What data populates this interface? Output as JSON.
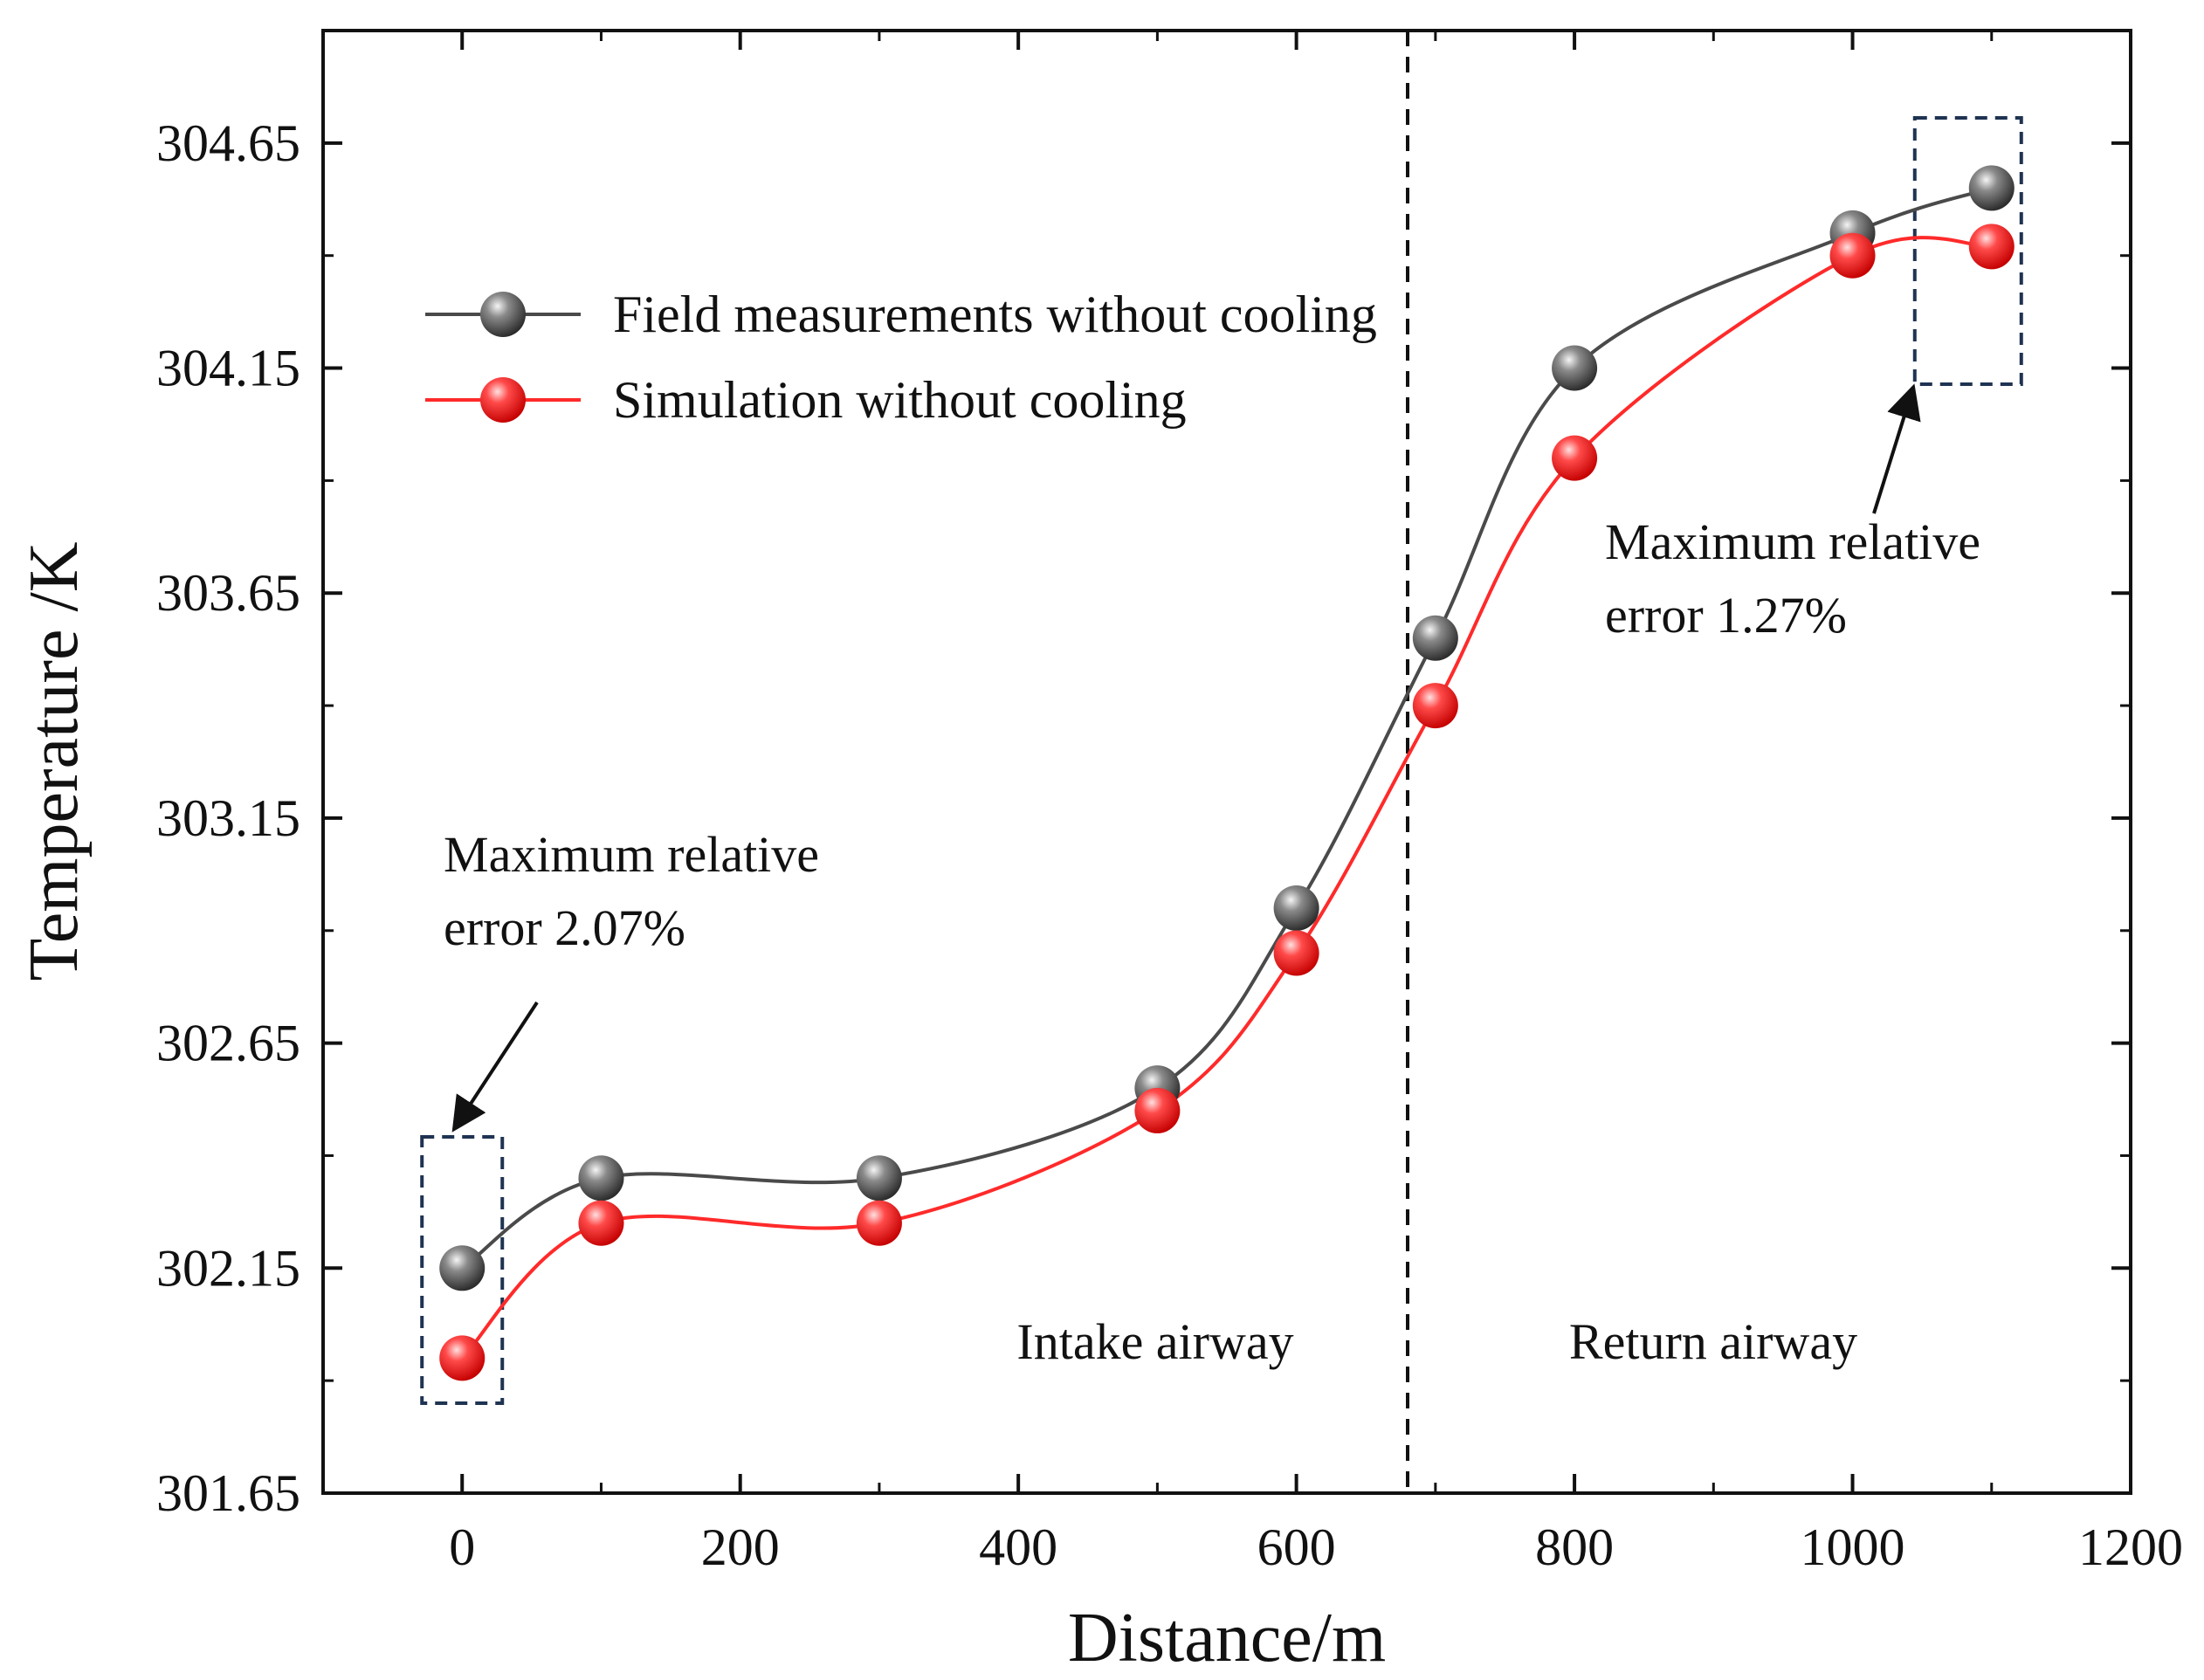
{
  "chart_data": {
    "type": "line",
    "title": "",
    "xlabel": "Distance/m",
    "ylabel": "Temperature /K",
    "xlim": [
      -100,
      1200
    ],
    "ylim": [
      301.65,
      304.9
    ],
    "x_ticks": [
      0,
      200,
      400,
      600,
      800,
      1000,
      1200
    ],
    "y_ticks": [
      301.65,
      302.15,
      302.65,
      303.15,
      303.65,
      304.15,
      304.65
    ],
    "x_tick_labels": [
      "0",
      "200",
      "400",
      "600",
      "800",
      "1000",
      "1200"
    ],
    "y_tick_labels": [
      "301.65",
      "302.15",
      "302.65",
      "303.15",
      "303.65",
      "304.15",
      "304.65"
    ],
    "divider_x": 680,
    "x": [
      0,
      100,
      300,
      500,
      600,
      700,
      800,
      1000,
      1100
    ],
    "series": [
      {
        "name": "Field measurements without cooling",
        "color": "#4a4a4a",
        "marker_color": "#555555",
        "values": [
          302.15,
          302.35,
          302.35,
          302.55,
          302.95,
          303.55,
          304.15,
          304.45,
          304.55
        ]
      },
      {
        "name": "Simulation without cooling",
        "color": "#ff2a2a",
        "marker_color": "#ff3b3b",
        "values": [
          301.95,
          302.25,
          302.25,
          302.5,
          302.85,
          303.4,
          303.95,
          304.4,
          304.42
        ]
      }
    ],
    "legend_position": "top-left",
    "grid": false,
    "annotations": {
      "left_box": {
        "line1": "Maximum relative",
        "line2": "error 2.07%"
      },
      "right_box": {
        "line1": "Maximum relative",
        "line2": "error 1.27%"
      },
      "region_left": "Intake airway",
      "region_right": "Return airway"
    }
  }
}
